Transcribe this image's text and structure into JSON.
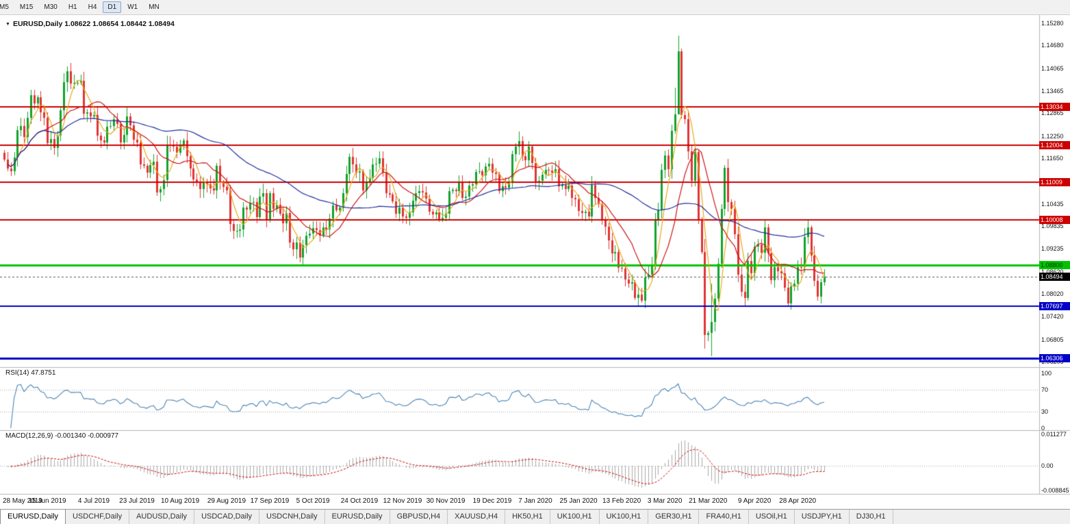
{
  "toolbar": {
    "timeframes": [
      {
        "label": "M5",
        "active": false
      },
      {
        "label": "M15",
        "active": false
      },
      {
        "label": "M30",
        "active": false
      },
      {
        "label": "H1",
        "active": false
      },
      {
        "label": "H4",
        "active": false
      },
      {
        "label": "D1",
        "active": true
      },
      {
        "label": "W1",
        "active": false
      },
      {
        "label": "MN",
        "active": false
      }
    ]
  },
  "icons": {
    "symbol_arrow": "▼"
  },
  "colors": {
    "candle_up": "#10a32b",
    "candle_down": "#e23333",
    "separator": "#b4b4b4",
    "price_line": "#555555",
    "level_dotted": "#aaaaaa"
  },
  "chart_data": {
    "type": "candlestick",
    "symbol": "EURUSD",
    "timeframe": "Daily",
    "title_line": "EURUSD,Daily 1.08622 1.08654 1.08442 1.08494",
    "ohlc": {
      "open": "1.08622",
      "high": "1.08654",
      "low": "1.08442",
      "close": "1.08494"
    },
    "scale": {
      "top": 1.1542,
      "bottom": 1.061
    },
    "y_axis_ticks": [
      "1.15280",
      "1.14680",
      "1.14065",
      "1.13465",
      "1.12865",
      "1.12250",
      "1.11650",
      "1.11050",
      "1.10435",
      "1.09835",
      "1.09235",
      "1.08620",
      "1.08020",
      "1.07420",
      "1.06805",
      "1.06205"
    ],
    "x_axis_labels": [
      {
        "i": 0,
        "label": "28 May 2019"
      },
      {
        "i": 13,
        "label": "15 Jun 2019"
      },
      {
        "i": 27,
        "label": "4 Jul 2019"
      },
      {
        "i": 40,
        "label": "23 Jul 2019"
      },
      {
        "i": 53,
        "label": "10 Aug 2019"
      },
      {
        "i": 67,
        "label": "29 Aug 2019"
      },
      {
        "i": 80,
        "label": "17 Sep 2019"
      },
      {
        "i": 93,
        "label": "5 Oct 2019"
      },
      {
        "i": 107,
        "label": "24 Oct 2019"
      },
      {
        "i": 120,
        "label": "12 Nov 2019"
      },
      {
        "i": 133,
        "label": "30 Nov 2019"
      },
      {
        "i": 147,
        "label": "19 Dec 2019"
      },
      {
        "i": 160,
        "label": "7 Jan 2020"
      },
      {
        "i": 173,
        "label": "25 Jan 2020"
      },
      {
        "i": 186,
        "label": "13 Feb 2020"
      },
      {
        "i": 199,
        "label": "3 Mar 2020"
      },
      {
        "i": 212,
        "label": "21 Mar 2020"
      },
      {
        "i": 226,
        "label": "9 Apr 2020"
      },
      {
        "i": 239,
        "label": "28 Apr 2020"
      }
    ],
    "h_lines": [
      {
        "value": 1.13034,
        "label": "1.13034",
        "color": "#cc0000",
        "width": 2,
        "text": "#ffffff"
      },
      {
        "value": 1.12004,
        "label": "1.12004",
        "color": "#cc0000",
        "width": 2,
        "text": "#ffffff"
      },
      {
        "value": 1.11009,
        "label": "1.11009",
        "color": "#cc0000",
        "width": 2,
        "text": "#ffffff"
      },
      {
        "value": 1.10008,
        "label": "1.10008",
        "color": "#cc0000",
        "width": 2,
        "text": "#ffffff"
      },
      {
        "value": 1.088,
        "label": "1.08800",
        "color": "#00c400",
        "width": 3,
        "text": "#003300"
      },
      {
        "value": 1.07697,
        "label": "1.07697",
        "color": "#0000c8",
        "width": 2,
        "text": "#ffffff"
      },
      {
        "value": 1.06306,
        "label": "1.06306",
        "color": "#0000c8",
        "width": 3,
        "text": "#ffffff"
      }
    ],
    "current_price": {
      "value": 1.08494,
      "label": "1.08494",
      "badge_bg": "#000000",
      "text": "#ffffff"
    },
    "moving_averages": [
      {
        "period": 5,
        "color": "#e6a817"
      },
      {
        "period": 13,
        "color": "#cc1111"
      },
      {
        "period": 50,
        "color": "#1f2d9e"
      }
    ],
    "candles": {
      "first_open": 1.118,
      "closes": [
        1.1162,
        1.1138,
        1.1131,
        1.1168,
        1.1241,
        1.1252,
        1.1222,
        1.1275,
        1.1334,
        1.1312,
        1.1329,
        1.1288,
        1.1275,
        1.1207,
        1.1218,
        1.1194,
        1.1226,
        1.1294,
        1.1369,
        1.1399,
        1.1366,
        1.1367,
        1.1368,
        1.1373,
        1.1285,
        1.1288,
        1.1278,
        1.1282,
        1.1227,
        1.1213,
        1.1208,
        1.125,
        1.1253,
        1.127,
        1.1258,
        1.1209,
        1.1229,
        1.1277,
        1.1254,
        1.1215,
        1.1208,
        1.115,
        1.1145,
        1.1128,
        1.1148,
        1.1156,
        1.1075,
        1.1084,
        1.1108,
        1.1201,
        1.12,
        1.1197,
        1.118,
        1.12,
        1.1213,
        1.1171,
        1.1139,
        1.1109,
        1.1099,
        1.1083,
        1.11,
        1.1096,
        1.1086,
        1.1079,
        1.1145,
        1.1101,
        1.1089,
        1.1079,
        1.0989,
        1.0971,
        1.0972,
        1.0976,
        1.1034,
        1.1028,
        1.1047,
        1.1049,
        1.1009,
        1.1063,
        1.1073,
        1.1003,
        1.1072,
        1.103,
        1.1041,
        1.1017,
        1.0992,
        1.102,
        1.0941,
        1.0921,
        1.094,
        1.0899,
        1.0932,
        1.0959,
        1.0965,
        1.0979,
        1.0973,
        1.0959,
        1.0981,
        1.0975,
        1.1004,
        1.104,
        1.1026,
        1.1034,
        1.1073,
        1.1124,
        1.117,
        1.115,
        1.1128,
        1.1131,
        1.108,
        1.11,
        1.1112,
        1.115,
        1.1152,
        1.1166,
        1.1127,
        1.1073,
        1.1068,
        1.1051,
        1.1018,
        1.1034,
        1.101,
        1.1006,
        1.1021,
        1.1052,
        1.1072,
        1.1078,
        1.1074,
        1.1058,
        1.1022,
        1.1015,
        1.1021,
        1.1002,
        1.1007,
        1.1018,
        1.1078,
        1.1082,
        1.1077,
        1.1104,
        1.106,
        1.1064,
        1.1093,
        1.1097,
        1.113,
        1.1131,
        1.112,
        1.1144,
        1.1152,
        1.1128,
        1.1123,
        1.1078,
        1.1091,
        1.1087,
        1.1099,
        1.1177,
        1.1198,
        1.1212,
        1.1172,
        1.116,
        1.1197,
        1.1153,
        1.1103,
        1.1106,
        1.1122,
        1.1134,
        1.1132,
        1.1128,
        1.1136,
        1.109,
        1.1095,
        1.1084,
        1.1092,
        1.106,
        1.1056,
        1.1024,
        1.1019,
        1.1022,
        1.101,
        1.1094,
        1.106,
        1.1043,
        1.1,
        1.0983,
        1.0946,
        1.091,
        1.0915,
        1.0873,
        1.087,
        1.0841,
        1.0831,
        1.0834,
        1.0792,
        1.08,
        1.0785,
        1.0846,
        1.0854,
        1.0881,
        1.0999,
        1.1026,
        1.1135,
        1.1173,
        1.1136,
        1.124,
        1.1284,
        1.1452,
        1.1281,
        1.1271,
        1.1184,
        1.1106,
        1.1182,
        1.1,
        1.0915,
        1.0692,
        1.0698,
        1.0727,
        1.0789,
        1.0883,
        1.103,
        1.1141,
        1.1048,
        1.1031,
        1.0963,
        1.0854,
        1.0808,
        1.0791,
        1.0891,
        1.0858,
        1.093,
        1.0935,
        1.0913,
        1.0981,
        1.091,
        1.084,
        1.0875,
        1.0863,
        1.0858,
        1.082,
        1.0777,
        1.0823,
        1.083,
        1.0875,
        1.0874,
        1.0955,
        1.098,
        1.0906,
        1.0837,
        1.0795,
        1.0834,
        1.08494
      ],
      "wick_overrides": {
        "19": [
          1.1412,
          1.1344
        ],
        "90": [
          1.0947,
          1.0879
        ],
        "192": [
          1.082,
          1.0778
        ],
        "202": [
          1.1355,
          1.1232
        ],
        "203": [
          1.1495,
          1.1367
        ],
        "211": [
          1.095,
          1.0656
        ],
        "213": [
          1.083,
          1.0636
        ],
        "217": [
          1.1147,
          1.1012
        ]
      }
    },
    "rsi": {
      "label": "RSI(14) 47.8751",
      "period": 14,
      "value": "47.8751",
      "color": "#4682b4",
      "levels": [
        {
          "v": 100,
          "label": "100"
        },
        {
          "v": 70,
          "label": "70"
        },
        {
          "v": 30,
          "label": "30"
        },
        {
          "v": 0,
          "label": "0"
        }
      ]
    },
    "macd": {
      "label": "MACD(12,26,9) -0.001340 -0.000977",
      "fast": 12,
      "slow": 26,
      "signal": 9,
      "main_value": "-0.001340",
      "signal_value": "-0.000977",
      "hist_color": "#a8a8a8",
      "signal_color": "#cc0000",
      "axis": [
        {
          "v": 0.011277,
          "label": "0.011277"
        },
        {
          "v": 0,
          "label": "0.00"
        },
        {
          "v": -0.008845,
          "label": "-0.008845"
        }
      ]
    }
  },
  "tabs": {
    "items": [
      {
        "label": "EURUSD,Daily",
        "active": true
      },
      {
        "label": "USDCHF,Daily",
        "active": false
      },
      {
        "label": "AUDUSD,Daily",
        "active": false
      },
      {
        "label": "USDCAD,Daily",
        "active": false
      },
      {
        "label": "USDCNH,Daily",
        "active": false
      },
      {
        "label": "EURUSD,Daily",
        "active": false
      },
      {
        "label": "GBPUSD,H4",
        "active": false
      },
      {
        "label": "XAUUSD,H4",
        "active": false
      },
      {
        "label": "HK50,H1",
        "active": false
      },
      {
        "label": "UK100,H1",
        "active": false
      },
      {
        "label": "UK100,H1",
        "active": false
      },
      {
        "label": "GER30,H1",
        "active": false
      },
      {
        "label": "FRA40,H1",
        "active": false
      },
      {
        "label": "USOil,H1",
        "active": false
      },
      {
        "label": "USDJPY,H1",
        "active": false
      },
      {
        "label": "DJ30,H1",
        "active": false
      }
    ]
  }
}
